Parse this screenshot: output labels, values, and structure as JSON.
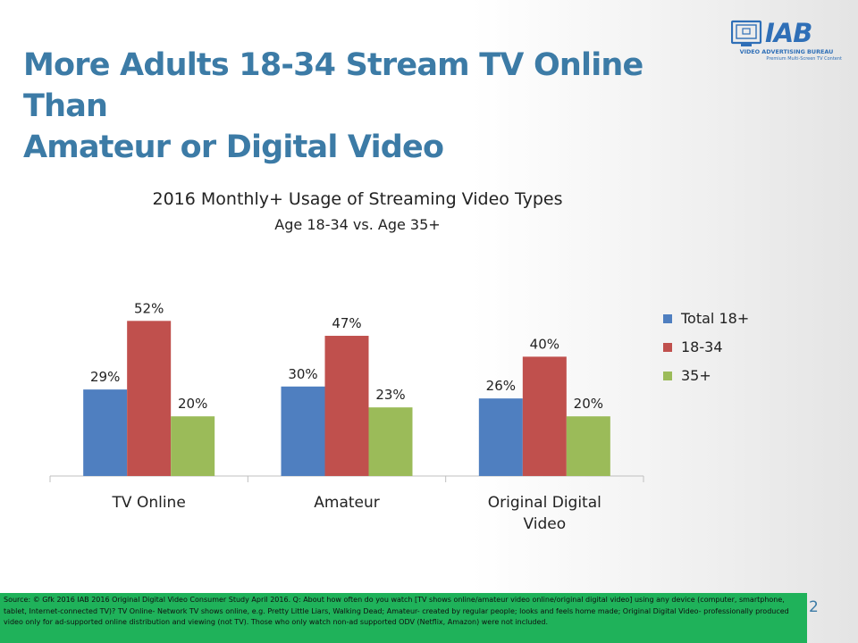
{
  "slide": {
    "title_line1": "More Adults 18-34 Stream TV Online Than",
    "title_line2": "Amateur or Digital Video",
    "page_number": "2",
    "source": "Source: © Gfk 2016 IAB 2016 Original Digital Video Consumer Study April 2016. Q: About how often do you watch [TV shows online/amateur video online/original digital video] using any device (computer, smartphone, tablet, Internet-connected TV)? TV Online- Network TV shows online, e.g. Pretty Little Liars, Walking Dead; Amateur- created by regular people; looks and feels home made; Original Digital Video- professionally produced video only for ad-supported online distribution and viewing (not TV). Those who only watch non-ad supported ODV (Netflix, Amazon) were not included."
  },
  "logo": {
    "wordmark": "IAB",
    "line1": "VIDEO ADVERTISING BUREAU",
    "line2": "Premium Multi-Screen TV Content",
    "icon": "tv-screen-icon",
    "color": "#2f6fb7"
  },
  "chart_data": {
    "type": "bar",
    "title": "2016 Monthly+ Usage of Streaming Video Types",
    "subtitle": "Age 18-34 vs. Age 35+",
    "categories": [
      "TV Online",
      "Amateur",
      "Original Digital Video"
    ],
    "series": [
      {
        "name": "Total 18+",
        "values": [
          29,
          30,
          26
        ],
        "labels": [
          "29%",
          "30%",
          "26%"
        ],
        "color": "#4f7fc0"
      },
      {
        "name": "18-34",
        "values": [
          52,
          47,
          40
        ],
        "labels": [
          "52%",
          "47%",
          "40%"
        ],
        "color": "#c0504d"
      },
      {
        "name": "35+",
        "values": [
          20,
          23,
          20
        ],
        "labels": [
          "20%",
          "23%",
          "20%"
        ],
        "color": "#9bbb59"
      }
    ],
    "ylim": [
      0,
      60
    ],
    "grid": false,
    "legend_position": "right"
  },
  "colors": {
    "title": "#3c7ba6",
    "footer_bg": "#1fb25a"
  }
}
